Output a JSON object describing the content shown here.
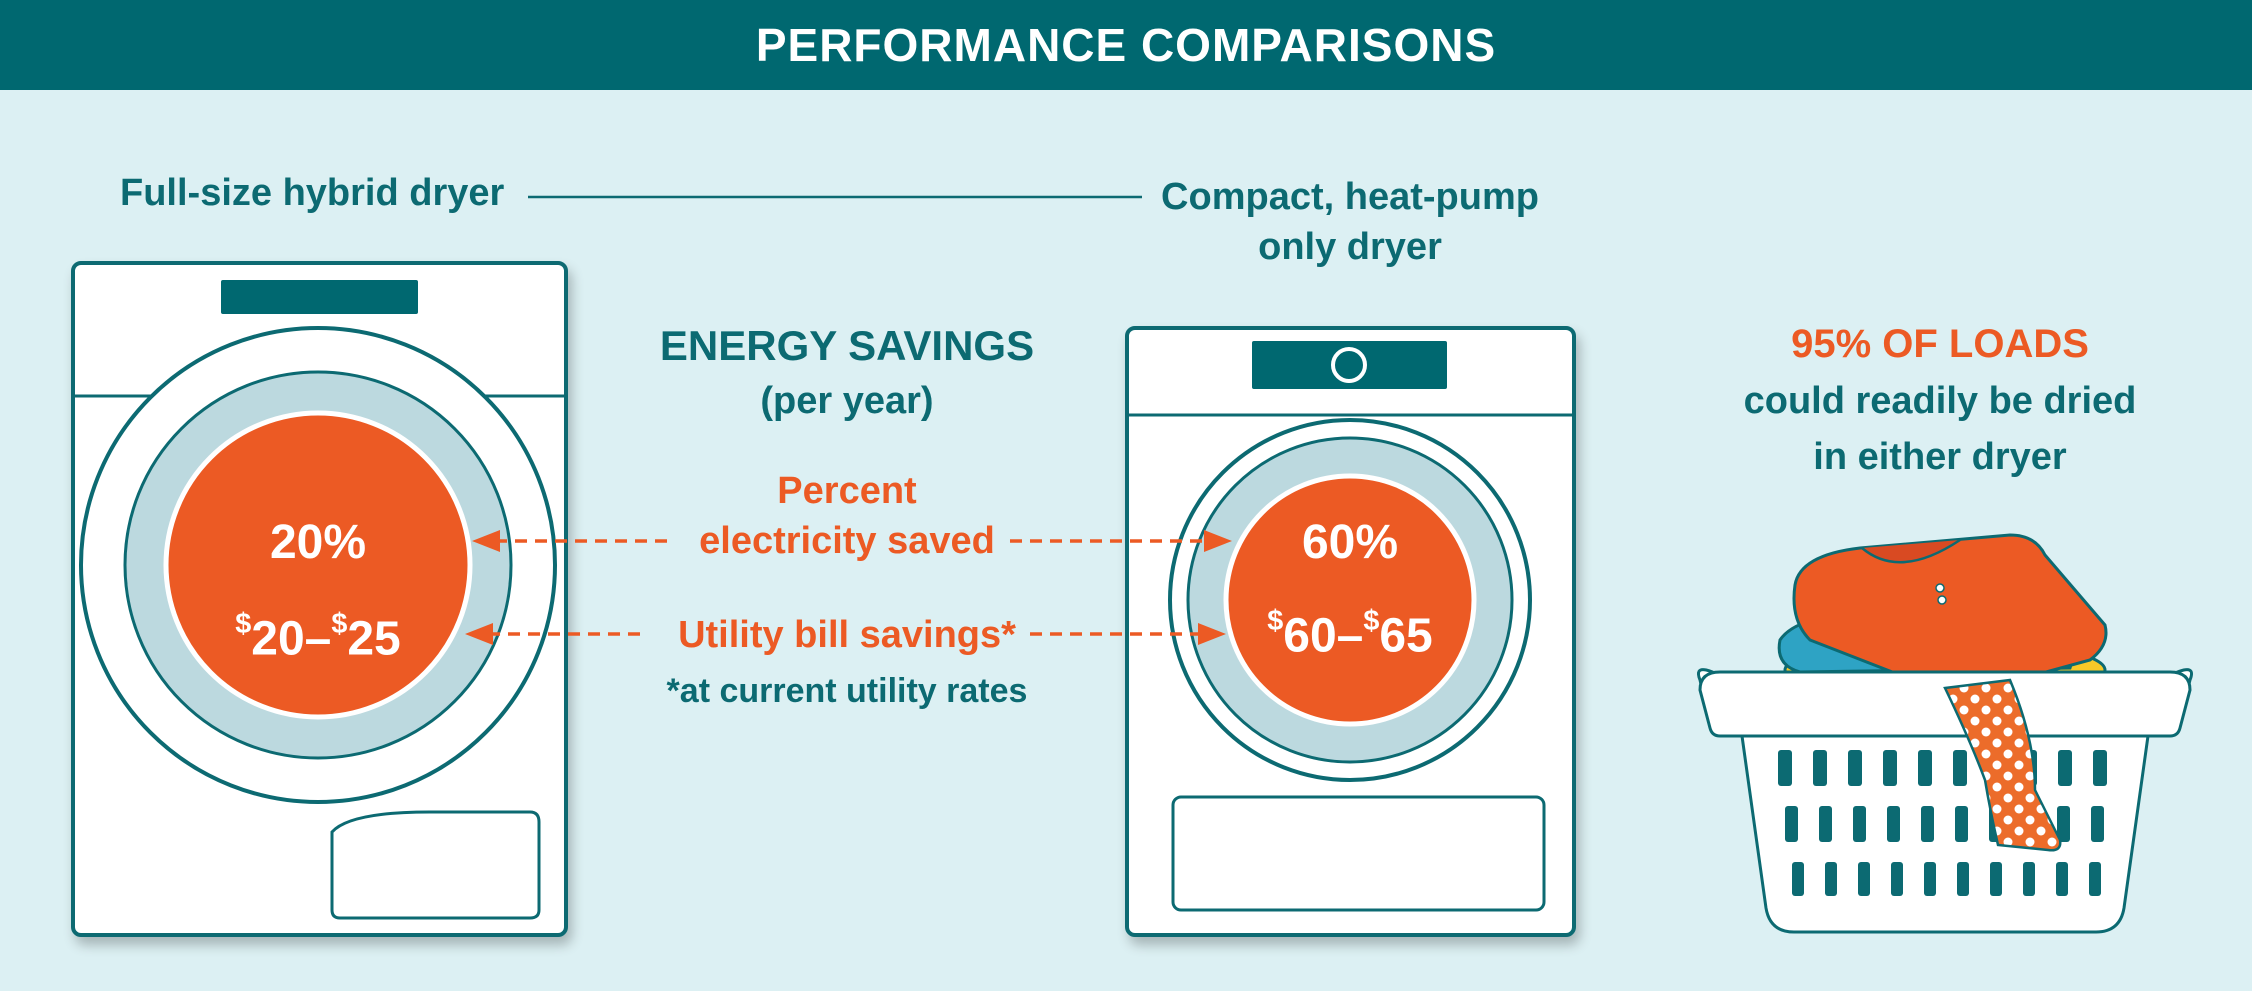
{
  "header": {
    "title": "PERFORMANCE COMPARISONS"
  },
  "dryers": {
    "full_size_label": "Full-size hybrid dryer",
    "compact_label_line1": "Compact, heat-pump",
    "compact_label_line2": "only dryer"
  },
  "energy_savings": {
    "title": "ENERGY SAVINGS",
    "subtitle": "(per year)",
    "percent_label_line1": "Percent",
    "percent_label_line2": "electricity saved",
    "bill_label": "Utility bill savings*",
    "footnote": "*at current utility rates"
  },
  "full_size": {
    "percent": "20%",
    "savings_low": "20",
    "savings_high": "25",
    "currency": "$",
    "separator": "–"
  },
  "compact": {
    "percent": "60%",
    "savings_low": "60",
    "savings_high": "65",
    "currency": "$",
    "separator": "–"
  },
  "loads": {
    "headline": "95% OF LOADS",
    "line1": "could readily be dried",
    "line2": "in either dryer"
  },
  "colors": {
    "teal": "#006870",
    "orange": "#ec5a24",
    "background": "#dcf0f3",
    "drum_ring": "#bcd9df"
  }
}
